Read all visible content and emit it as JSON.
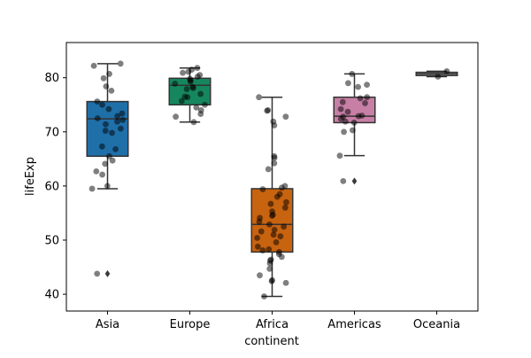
{
  "chart_data": {
    "type": "box",
    "title": "",
    "xlabel": "continent",
    "ylabel": "lifeExp",
    "categories": [
      "Asia",
      "Europe",
      "Africa",
      "Americas",
      "Oceania"
    ],
    "ylim": [
      36.9,
      86.5
    ],
    "yticks": [
      40,
      50,
      60,
      70,
      80
    ],
    "grid": false,
    "colors": [
      "#1f6fa8",
      "#16865f",
      "#c8630f",
      "#c77fa5",
      "#c6c6c6"
    ],
    "point_color": "#000000",
    "boxes": [
      {
        "category": "Asia",
        "q1": 65.5,
        "median": 72.4,
        "q3": 75.6,
        "whisker_low": 59.5,
        "whisker_high": 82.6,
        "outliers": [
          43.8
        ]
      },
      {
        "category": "Europe",
        "q1": 75.0,
        "median": 78.6,
        "q3": 79.9,
        "whisker_low": 71.8,
        "whisker_high": 81.8,
        "outliers": []
      },
      {
        "category": "Africa",
        "q1": 47.8,
        "median": 52.9,
        "q3": 59.5,
        "whisker_low": 39.6,
        "whisker_high": 76.4,
        "outliers": []
      },
      {
        "category": "Americas",
        "q1": 71.7,
        "median": 72.9,
        "q3": 76.4,
        "whisker_low": 65.6,
        "whisker_high": 80.7,
        "outliers": [
          60.9
        ]
      },
      {
        "category": "Oceania",
        "q1": 80.4,
        "median": 80.7,
        "q3": 81.0,
        "whisker_low": 80.2,
        "whisker_high": 81.2,
        "outliers": []
      }
    ],
    "points": [
      {
        "category": "Asia",
        "values": [
          82.6,
          82.2,
          80.7,
          79.9,
          78.4,
          77.6,
          75.6,
          75.0,
          74.2,
          73.4,
          72.9,
          72.5,
          72.2,
          71.9,
          71.4,
          70.6,
          70.2,
          69.8,
          67.3,
          66.8,
          65.5,
          64.7,
          64.1,
          62.7,
          62.1,
          60.0,
          59.5,
          43.8
        ]
      },
      {
        "category": "Europe",
        "values": [
          81.8,
          81.5,
          81.1,
          80.9,
          80.5,
          80.2,
          79.8,
          79.5,
          79.3,
          78.9,
          78.3,
          78.1,
          77.9,
          77.0,
          76.5,
          76.4,
          75.7,
          75.0,
          74.5,
          74.0,
          73.3,
          72.8,
          71.8
        ]
      },
      {
        "category": "Africa",
        "values": [
          76.4,
          74.0,
          73.9,
          72.8,
          71.9,
          71.2,
          65.5,
          65.2,
          64.2,
          63.1,
          60.0,
          59.7,
          59.4,
          58.5,
          58.0,
          57.0,
          56.7,
          56.0,
          55.3,
          54.7,
          54.5,
          54.1,
          53.4,
          52.9,
          52.5,
          51.9,
          51.6,
          51.0,
          50.7,
          50.4,
          49.6,
          48.8,
          48.3,
          48.1,
          47.8,
          47.4,
          46.9,
          46.4,
          46.2,
          45.7,
          44.7,
          43.5,
          42.6,
          42.4,
          42.1,
          39.6
        ]
      },
      {
        "category": "Americas",
        "values": [
          80.7,
          79.0,
          78.7,
          78.3,
          76.4,
          76.2,
          75.5,
          75.3,
          74.2,
          73.7,
          73.0,
          72.9,
          72.8,
          72.4,
          71.9,
          71.7,
          70.3,
          70.0,
          65.6,
          60.9
        ]
      },
      {
        "category": "Oceania",
        "values": [
          81.2,
          80.2
        ]
      }
    ]
  }
}
